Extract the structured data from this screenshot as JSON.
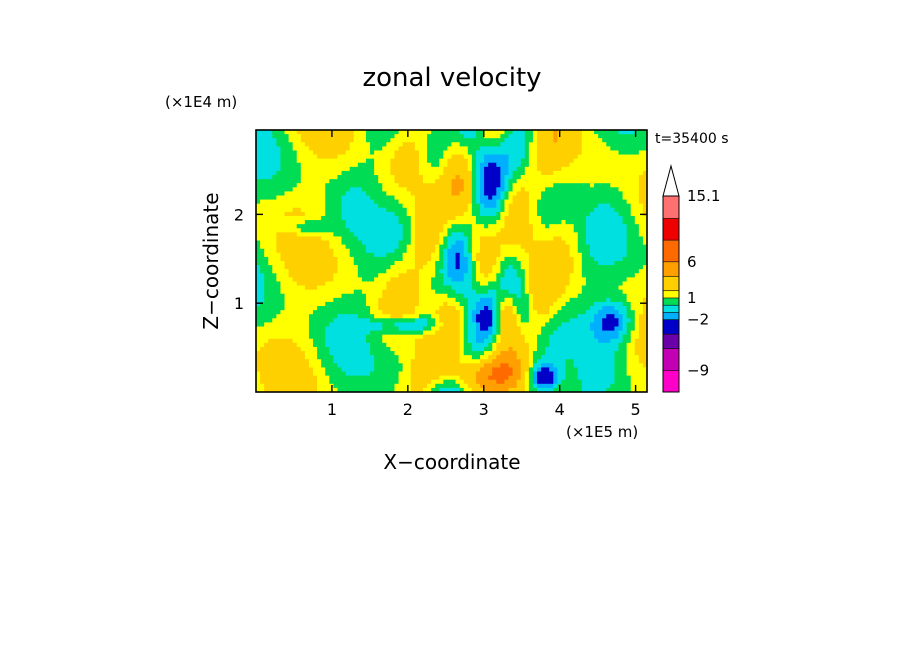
{
  "chart_data": {
    "type": "heatmap",
    "title": "zonal velocity",
    "xlabel": "X−coordinate",
    "ylabel": "Z−coordinate",
    "x_scale_label": "(×1E5 m)",
    "y_scale_label": "(×1E4 m)",
    "time_label": "t=35400 s",
    "xlim": [
      0,
      5.15
    ],
    "ylim": [
      0,
      2.95
    ],
    "x_ticks": [
      "1",
      "2",
      "3",
      "4",
      "5"
    ],
    "x_tick_values": [
      1,
      2,
      3,
      4,
      5
    ],
    "y_ticks": [
      "1",
      "2"
    ],
    "y_tick_values": [
      1,
      2
    ],
    "colorbar": {
      "labels": [
        "15.1",
        "6",
        "1",
        "−2",
        "−9"
      ],
      "label_values": [
        15.1,
        6,
        1,
        -2,
        -9
      ],
      "levels": [
        -12,
        -9,
        -6,
        -4,
        -2,
        -1,
        0,
        1,
        2,
        4,
        6,
        9,
        12,
        15.1
      ],
      "colors": [
        "#ff00c8",
        "#c400b4",
        "#6a00a8",
        "#0000c8",
        "#00b0ff",
        "#00e0e0",
        "#00dd55",
        "#ffff00",
        "#ffd000",
        "#ffa000",
        "#ff6a00",
        "#ee0000",
        "#ff7070",
        "#ffb4b4"
      ],
      "extend_max": true
    }
  }
}
